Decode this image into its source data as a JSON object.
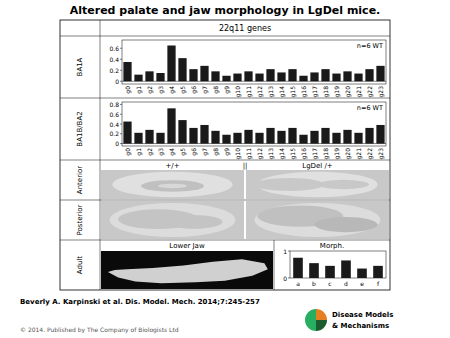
{
  "chart_data": [
    {
      "type": "bar",
      "title": "22q11 genes",
      "y_label": "BA1A",
      "categories": [
        "g0",
        "g1",
        "g2",
        "g3",
        "g4",
        "g5",
        "g6",
        "g7",
        "g8",
        "g9",
        "g10",
        "g11",
        "g12",
        "g13",
        "g14",
        "g15",
        "g16",
        "g17",
        "g18",
        "g19",
        "g20",
        "g21",
        "g22",
        "g23"
      ],
      "values": [
        0.35,
        0.12,
        0.18,
        0.15,
        0.65,
        0.42,
        0.22,
        0.28,
        0.18,
        0.1,
        0.14,
        0.18,
        0.14,
        0.22,
        0.16,
        0.22,
        0.1,
        0.16,
        0.22,
        0.14,
        0.18,
        0.14,
        0.22,
        0.28
      ],
      "color": "#1a1a1a",
      "ylim": [
        -0.05,
        0.75
      ],
      "yticks": [
        0,
        0.2,
        0.4,
        0.6
      ],
      "annotations": [
        "n=6 WT",
        "Altered palate and jaw morphology in LgDel mice.",
        "Beverly A. Karpinski et al. Dis. Model. Mech. 2014;7:245-257",
        "© 2014. Published by The Company of Biologists Ltd",
        "Disease Models",
        "& Mechanisms",
        "Anterior",
        "Posterior",
        "Adult",
        "+/+",
        "||",
        "LgDel /+",
        "Lower Jaw"
      ]
    },
    {
      "type": "bar",
      "y_label": "BA1B/BA2",
      "categories": [
        "g0",
        "g1",
        "g2",
        "g3",
        "g4",
        "g5",
        "g6",
        "g7",
        "g8",
        "g9",
        "g10",
        "g11",
        "g12",
        "g13",
        "g14",
        "g15",
        "g16",
        "g17",
        "g18",
        "g19",
        "g20",
        "g21",
        "g22",
        "g23"
      ],
      "values": [
        0.45,
        0.22,
        0.28,
        0.22,
        0.72,
        0.48,
        0.32,
        0.38,
        0.26,
        0.18,
        0.22,
        0.28,
        0.22,
        0.32,
        0.26,
        0.32,
        0.18,
        0.26,
        0.32,
        0.22,
        0.28,
        0.22,
        0.32,
        0.38
      ],
      "color": "#1a1a1a",
      "ylim": [
        -0.05,
        0.85
      ],
      "yticks": [
        0,
        0.2,
        0.4,
        0.6,
        0.8
      ],
      "annotations": [
        "n=6 WT"
      ]
    },
    {
      "type": "bar",
      "title": "Morph.",
      "categories": [
        "a",
        "b",
        "c",
        "d",
        "e",
        "f"
      ],
      "values": [
        0.75,
        0.55,
        0.45,
        0.65,
        0.35,
        0.45
      ],
      "color": "#1a1a1a",
      "ylim": [
        0,
        1.0
      ],
      "yticks": [
        0,
        1
      ]
    }
  ]
}
